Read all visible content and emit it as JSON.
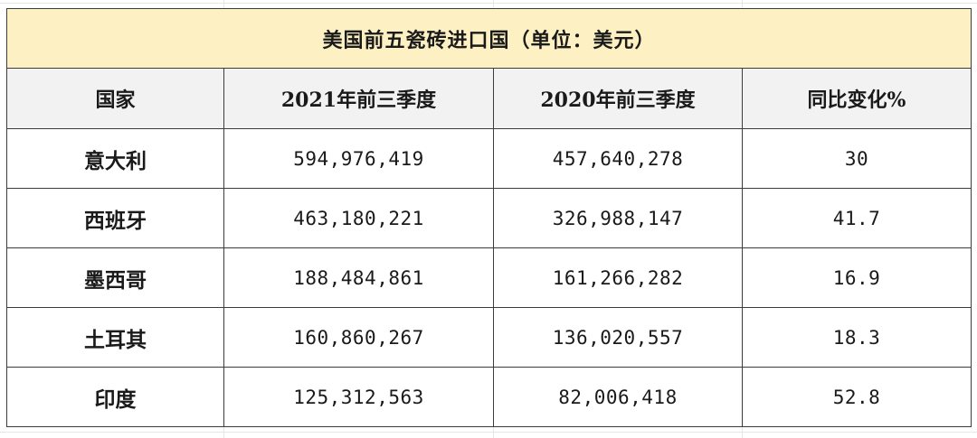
{
  "table": {
    "title": "美国前五瓷砖进口国（单位：美元）",
    "headers": [
      "国家",
      "2021年前三季度",
      "2020年前三季度",
      "同比变化%"
    ],
    "rows": [
      [
        "意大利",
        "594,976,419",
        "457,640,278",
        "30"
      ],
      [
        "西班牙",
        "463,180,221",
        "326,988,147",
        "41.7"
      ],
      [
        "墨西哥",
        "188,484,861",
        "161,266,282",
        "16.9"
      ],
      [
        "土耳其",
        "160,860,267",
        "136,020,557",
        "18.3"
      ],
      [
        "印度",
        "125,312,563",
        "82,006,418",
        "52.8"
      ]
    ]
  },
  "colors": {
    "title_bg": "#fdf0c3",
    "header_bg": "#f2f2f2",
    "border": "#3c3c3c"
  }
}
